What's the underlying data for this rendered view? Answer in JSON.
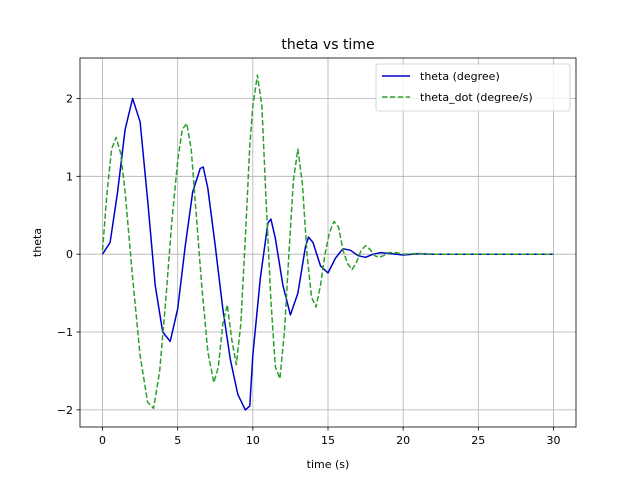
{
  "chart_data": {
    "type": "line",
    "title": "theta vs time",
    "xlabel": "time (s)",
    "ylabel": "theta",
    "xlim": [
      -1.5,
      31.5
    ],
    "ylim": [
      -2.22,
      2.52
    ],
    "xticks": [
      0,
      5,
      10,
      15,
      20,
      25,
      30
    ],
    "xtick_labels": [
      "0",
      "5",
      "10",
      "15",
      "20",
      "25",
      "30"
    ],
    "yticks": [
      -2,
      -1,
      0,
      1,
      2
    ],
    "ytick_labels": [
      "−2",
      "−1",
      "0",
      "1",
      "2"
    ],
    "grid": true,
    "legend_position": "top-right",
    "series": [
      {
        "name": "theta (degree)",
        "color": "#0000cc",
        "style": "solid",
        "x": [
          0,
          0.5,
          1.0,
          1.5,
          2.0,
          2.5,
          3.0,
          3.5,
          4.0,
          4.5,
          5.0,
          5.5,
          6.0,
          6.5,
          6.7,
          7.0,
          7.5,
          8.0,
          8.5,
          9.0,
          9.5,
          9.8,
          10.0,
          10.5,
          11.0,
          11.2,
          11.5,
          12.0,
          12.5,
          13.0,
          13.5,
          13.7,
          14.0,
          14.5,
          15.0,
          15.5,
          16.0,
          16.5,
          17.0,
          17.5,
          18.0,
          18.5,
          19.0,
          20.0,
          21.0,
          22.0,
          25.0,
          30.0
        ],
        "y": [
          0,
          0.15,
          0.8,
          1.6,
          2.0,
          1.7,
          0.7,
          -0.4,
          -1.0,
          -1.12,
          -0.7,
          0.1,
          0.8,
          1.1,
          1.12,
          0.85,
          0.1,
          -0.7,
          -1.35,
          -1.8,
          -2.0,
          -1.95,
          -1.3,
          -0.3,
          0.4,
          0.45,
          0.2,
          -0.4,
          -0.78,
          -0.5,
          0.1,
          0.22,
          0.15,
          -0.15,
          -0.24,
          -0.05,
          0.07,
          0.05,
          -0.02,
          -0.04,
          0.0,
          0.02,
          0.01,
          -0.01,
          0.005,
          0.0,
          0.0,
          0.0
        ]
      },
      {
        "name": "theta_dot (degree/s)",
        "color": "#2ca02c",
        "style": "dashed",
        "x": [
          0,
          0.3,
          0.6,
          0.9,
          1.2,
          1.5,
          2.0,
          2.5,
          3.0,
          3.4,
          3.8,
          4.2,
          4.6,
          5.0,
          5.3,
          5.6,
          5.9,
          6.2,
          6.6,
          7.0,
          7.4,
          7.7,
          8.0,
          8.3,
          8.6,
          8.9,
          9.2,
          9.5,
          9.8,
          10.0,
          10.3,
          10.6,
          10.9,
          11.2,
          11.5,
          11.8,
          12.1,
          12.4,
          12.7,
          13.0,
          13.3,
          13.6,
          13.9,
          14.2,
          14.5,
          14.8,
          15.1,
          15.4,
          15.7,
          16.0,
          16.3,
          16.6,
          16.9,
          17.2,
          17.5,
          17.8,
          18.1,
          18.4,
          18.7,
          19.0,
          19.5,
          20.0,
          21.0,
          22.0,
          25.0,
          30.0
        ],
        "y": [
          0.05,
          0.8,
          1.35,
          1.5,
          1.3,
          0.8,
          -0.3,
          -1.3,
          -1.9,
          -1.98,
          -1.5,
          -0.6,
          0.4,
          1.2,
          1.6,
          1.68,
          1.35,
          0.6,
          -0.4,
          -1.25,
          -1.65,
          -1.45,
          -0.9,
          -0.65,
          -1.1,
          -1.42,
          -0.9,
          0.2,
          1.4,
          1.9,
          2.3,
          1.9,
          0.6,
          -0.6,
          -1.45,
          -1.6,
          -1.0,
          0.0,
          0.95,
          1.35,
          0.9,
          0.0,
          -0.55,
          -0.68,
          -0.4,
          0.0,
          0.28,
          0.42,
          0.35,
          0.05,
          -0.12,
          -0.2,
          -0.1,
          0.05,
          0.11,
          0.06,
          -0.02,
          -0.04,
          -0.02,
          0.02,
          0.02,
          0.0,
          0.01,
          0.0,
          0.0,
          0.0
        ]
      }
    ]
  }
}
